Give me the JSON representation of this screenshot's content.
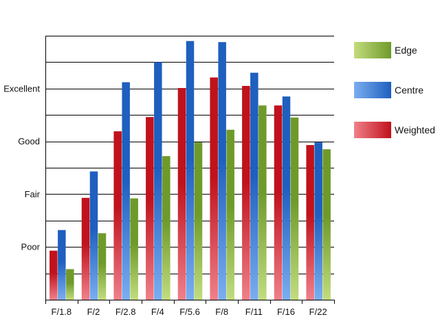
{
  "chart_data": {
    "type": "bar",
    "categories": [
      "F/1.8",
      "F/2",
      "F/2.8",
      "F/4",
      "F/5.6",
      "F/8",
      "F/11",
      "F/16",
      "F/22"
    ],
    "y_tick_labels": [
      {
        "value": 1,
        "label": "Poor"
      },
      {
        "value": 2,
        "label": "Fair"
      },
      {
        "value": 3,
        "label": "Good"
      },
      {
        "value": 4,
        "label": "Excellent"
      }
    ],
    "ylim": [
      0,
      5
    ],
    "grid_step": 0.5,
    "grid": true,
    "legend_position": "right",
    "series": [
      {
        "name": "Weighted",
        "color": "#c0121c",
        "light": "#f0808a",
        "values": [
          0.93,
          1.93,
          3.19,
          3.46,
          4.01,
          4.21,
          4.05,
          3.68,
          2.93
        ]
      },
      {
        "name": "Centre",
        "color": "#1f5fbf",
        "light": "#7aaef0",
        "values": [
          1.32,
          2.43,
          4.12,
          4.5,
          4.9,
          4.88,
          4.3,
          3.85,
          2.98
        ]
      },
      {
        "name": "Edge",
        "color": "#6f9a2a",
        "light": "#c3dc7e",
        "values": [
          0.58,
          1.26,
          1.92,
          2.72,
          2.98,
          3.22,
          3.68,
          3.45,
          2.85
        ]
      }
    ],
    "legend_order": [
      "Edge",
      "Centre",
      "Weighted"
    ]
  }
}
